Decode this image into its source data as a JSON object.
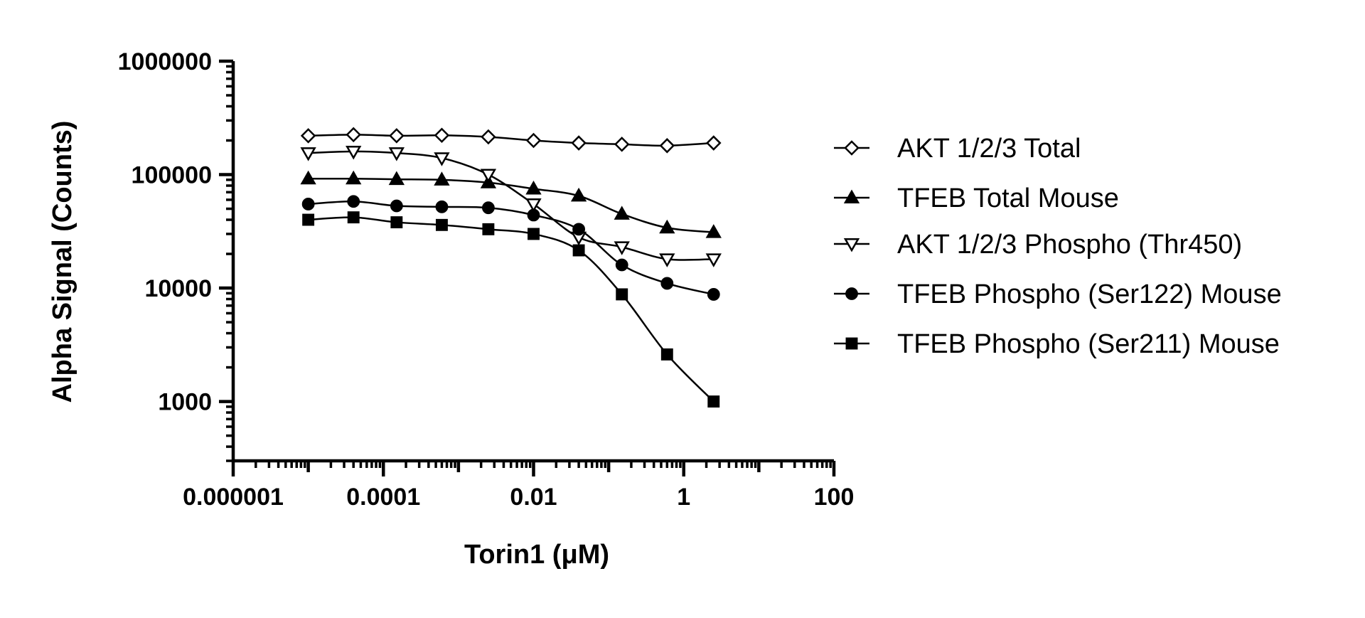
{
  "chart_data": {
    "type": "scatter",
    "xlabel": "Torin1 (μM)",
    "ylabel": "Alpha Signal (Counts)",
    "x_scale": "log",
    "y_scale": "log",
    "xlim": [
      1e-06,
      100
    ],
    "ylim": [
      300,
      1000000
    ],
    "x_ticks": [
      "0.000001",
      "0.0001",
      "0.01",
      "1",
      "100"
    ],
    "y_ticks": [
      "1000",
      "10000",
      "100000",
      "1000000"
    ],
    "legend_position": "right",
    "x": [
      1e-05,
      4e-05,
      0.00015,
      0.0006,
      0.0025,
      0.01,
      0.04,
      0.15,
      0.6,
      2.5
    ],
    "series": [
      {
        "name": "AKT 1/2/3 Total",
        "marker": "diamond-open",
        "values": [
          220000,
          225000,
          220000,
          222000,
          215000,
          200000,
          190000,
          185000,
          180000,
          190000
        ]
      },
      {
        "name": "TFEB Total Mouse",
        "marker": "triangle-up-filled",
        "values": [
          92000,
          92000,
          91000,
          90000,
          85000,
          75000,
          65000,
          45000,
          34000,
          31000
        ]
      },
      {
        "name": "AKT 1/2/3 Phospho (Thr450)",
        "marker": "triangle-down-open",
        "values": [
          155000,
          160000,
          155000,
          140000,
          100000,
          55000,
          28000,
          23000,
          18000,
          18000
        ]
      },
      {
        "name": "TFEB Phospho (Ser122) Mouse",
        "marker": "circle-filled",
        "values": [
          55000,
          58000,
          53000,
          52000,
          51000,
          44000,
          33000,
          16000,
          11000,
          8800
        ]
      },
      {
        "name": "TFEB Phospho (Ser211) Mouse",
        "marker": "square-filled",
        "values": [
          40000,
          42000,
          38000,
          36000,
          33000,
          30000,
          21500,
          8800,
          2600,
          1000
        ]
      }
    ]
  }
}
